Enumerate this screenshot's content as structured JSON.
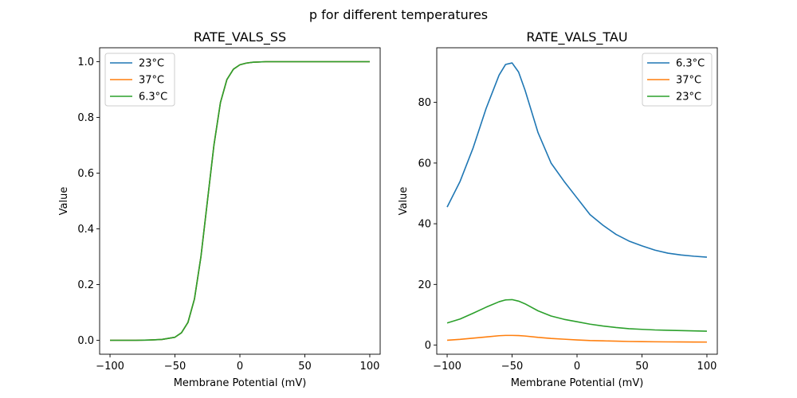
{
  "figure": {
    "suptitle": "p for different temperatures"
  },
  "chart_data": [
    {
      "type": "line",
      "title": "RATE_VALS_SS",
      "xlabel": "Membrane Potential (mV)",
      "ylabel": "Value",
      "xlim": [
        -108,
        108
      ],
      "ylim": [
        -0.05,
        1.05
      ],
      "xticks": [
        -100,
        -50,
        0,
        50,
        100
      ],
      "xtick_labels": [
        "−100",
        "−50",
        "0",
        "50",
        "100"
      ],
      "yticks": [
        0.0,
        0.2,
        0.4,
        0.6,
        0.8,
        1.0
      ],
      "ytick_labels": [
        "0.0",
        "0.2",
        "0.4",
        "0.6",
        "0.8",
        "1.0"
      ],
      "legend_position": "top-left",
      "grid": false,
      "x": [
        -100,
        -90,
        -80,
        -70,
        -60,
        -50,
        -45,
        -40,
        -35,
        -30,
        -25,
        -20,
        -15,
        -10,
        -5,
        0,
        5,
        10,
        20,
        30,
        50,
        75,
        100
      ],
      "series": [
        {
          "name": "23°C",
          "color": "#1f77b4",
          "values": [
            0.0,
            0.0,
            0.0,
            0.001,
            0.003,
            0.011,
            0.027,
            0.064,
            0.148,
            0.3,
            0.5,
            0.7,
            0.853,
            0.936,
            0.973,
            0.989,
            0.995,
            0.998,
            1.0,
            1.0,
            1.0,
            1.0,
            1.0
          ]
        },
        {
          "name": "37°C",
          "color": "#ff7f0e",
          "values": [
            0.0,
            0.0,
            0.0,
            0.001,
            0.003,
            0.011,
            0.027,
            0.064,
            0.148,
            0.3,
            0.5,
            0.7,
            0.853,
            0.936,
            0.973,
            0.989,
            0.995,
            0.998,
            1.0,
            1.0,
            1.0,
            1.0,
            1.0
          ]
        },
        {
          "name": "6.3°C",
          "color": "#2ca02c",
          "values": [
            0.0,
            0.0,
            0.0,
            0.001,
            0.003,
            0.011,
            0.027,
            0.064,
            0.148,
            0.3,
            0.5,
            0.7,
            0.853,
            0.936,
            0.973,
            0.989,
            0.995,
            0.998,
            1.0,
            1.0,
            1.0,
            1.0,
            1.0
          ]
        }
      ]
    },
    {
      "type": "line",
      "title": "RATE_VALS_TAU",
      "xlabel": "Membrane Potential (mV)",
      "ylabel": "Value",
      "xlim": [
        -108,
        108
      ],
      "ylim": [
        -3,
        98
      ],
      "xticks": [
        -100,
        -50,
        0,
        50,
        100
      ],
      "xtick_labels": [
        "−100",
        "−50",
        "0",
        "50",
        "100"
      ],
      "yticks": [
        0,
        20,
        40,
        60,
        80
      ],
      "ytick_labels": [
        "0",
        "20",
        "40",
        "60",
        "80"
      ],
      "legend_position": "top-right",
      "grid": false,
      "x": [
        -100,
        -90,
        -80,
        -70,
        -60,
        -55,
        -50,
        -45,
        -40,
        -30,
        -20,
        -10,
        0,
        10,
        20,
        30,
        40,
        50,
        60,
        70,
        80,
        90,
        100
      ],
      "series": [
        {
          "name": "6.3°C",
          "color": "#1f77b4",
          "values": [
            45.5,
            54,
            65,
            78,
            89,
            92.5,
            93,
            90,
            84,
            70,
            60,
            54,
            48.5,
            43,
            39.5,
            36.5,
            34.3,
            32.7,
            31.3,
            30.3,
            29.7,
            29.3,
            29.0
          ]
        },
        {
          "name": "37°C",
          "color": "#ff7f0e",
          "values": [
            1.6,
            1.9,
            2.3,
            2.7,
            3.1,
            3.2,
            3.2,
            3.15,
            3.0,
            2.55,
            2.2,
            1.95,
            1.7,
            1.5,
            1.4,
            1.3,
            1.2,
            1.15,
            1.1,
            1.07,
            1.05,
            1.03,
            1.0
          ]
        },
        {
          "name": "23°C",
          "color": "#2ca02c",
          "values": [
            7.3,
            8.6,
            10.5,
            12.5,
            14.3,
            14.9,
            15.0,
            14.5,
            13.6,
            11.3,
            9.6,
            8.5,
            7.7,
            6.9,
            6.3,
            5.8,
            5.4,
            5.2,
            5.0,
            4.9,
            4.8,
            4.7,
            4.6
          ]
        }
      ]
    }
  ]
}
